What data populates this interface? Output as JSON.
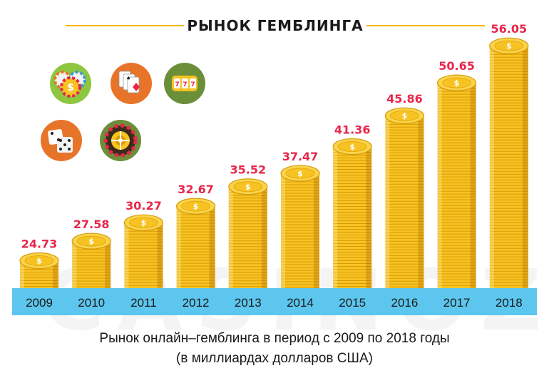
{
  "title": "РЫНОК ГЕМБЛИНГА",
  "watermark": "CASINOZ",
  "caption": {
    "line1": "Рынок онлайн–гемблинга в период с 2009 по 2018 годы",
    "line2": "(в миллиардах долларов США)"
  },
  "icons": [
    {
      "name": "casino-chips-icon",
      "color": "#8dc63f"
    },
    {
      "name": "playing-cards-icon",
      "color": "#e8742a"
    },
    {
      "name": "slot-machine-icon",
      "color": "#6b8e3a"
    },
    {
      "name": "dice-icon",
      "color": "#e8742a"
    },
    {
      "name": "roulette-wheel-icon",
      "color": "#6b8e3a"
    }
  ],
  "colors": {
    "accent": "#f5b800",
    "value_label": "#e8264a",
    "axis_band": "#5cc6ee",
    "coin": "#f7c322",
    "coin_edge": "#d89a0a"
  },
  "chart_data": {
    "type": "bar",
    "categories": [
      "2009",
      "2010",
      "2011",
      "2012",
      "2013",
      "2014",
      "2015",
      "2016",
      "2017",
      "2018"
    ],
    "values": [
      24.73,
      27.58,
      30.27,
      32.67,
      35.52,
      37.47,
      41.36,
      45.86,
      50.65,
      56.05
    ],
    "value_labels": [
      "24.73",
      "27.58",
      "30.27",
      "32.67",
      "35.52",
      "37.47",
      "41.36",
      "45.86",
      "50.65",
      "56.05"
    ],
    "title": "РЫНОК ГЕМБЛИНГА",
    "xlabel": "",
    "ylabel": "",
    "grid": false,
    "legend": "none"
  }
}
